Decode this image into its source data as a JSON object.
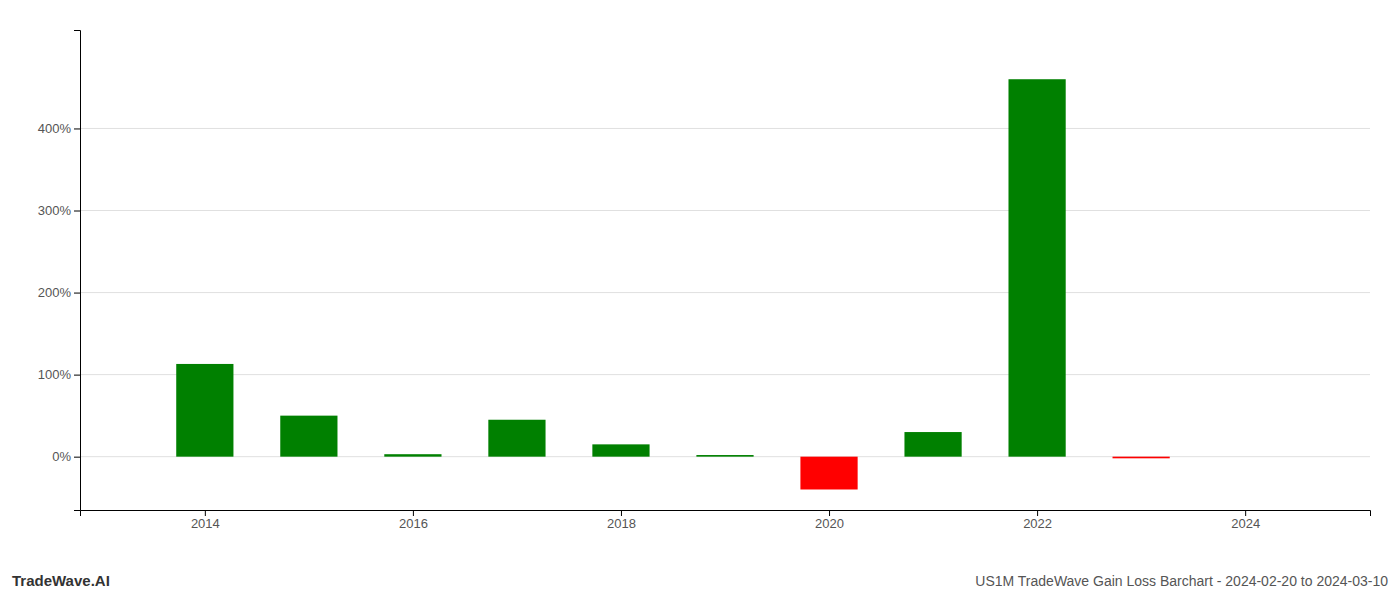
{
  "chart_data": {
    "type": "bar",
    "title": "US1M TradeWave Gain Loss Barchart - 2024-02-20 to 2024-03-10",
    "annotations": [
      "TradeWave.AI"
    ],
    "x": [
      2014,
      2015,
      2016,
      2017,
      2018,
      2019,
      2020,
      2021,
      2022,
      2023
    ],
    "values": [
      1.13,
      0.5,
      0.03,
      0.45,
      0.15,
      0.02,
      -0.4,
      0.3,
      4.6,
      -0.02
    ],
    "colors": [
      "#008000",
      "#008000",
      "#008000",
      "#008000",
      "#008000",
      "#008000",
      "#ff0000",
      "#008000",
      "#008000",
      "#ff0000"
    ],
    "xlim": [
      2012.8,
      2025.2
    ],
    "xticks": [
      2014,
      2016,
      2018,
      2020,
      2022,
      2024
    ],
    "ylim": [
      -0.65,
      5.2
    ],
    "yticks": [
      {
        "value": 0.0,
        "label": "0%"
      },
      {
        "value": 1.0,
        "label": "100%"
      },
      {
        "value": 2.0,
        "label": "200%"
      },
      {
        "value": 3.0,
        "label": "300%"
      },
      {
        "value": 4.0,
        "label": "400%"
      }
    ],
    "grid": true
  }
}
